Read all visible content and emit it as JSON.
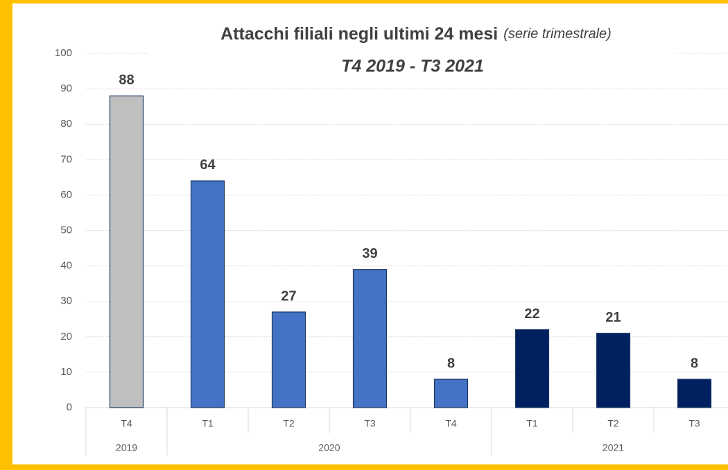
{
  "chart_data": {
    "type": "bar",
    "title": "Attacchi filiali negli ultimi 24 mesi",
    "title_note": "(serie trimestrale)",
    "subtitle": "T4 2019 - T3 2021",
    "groups": [
      {
        "name": "2019",
        "color": "#BFBFBF",
        "categories": [
          "T4"
        ],
        "values": [
          88
        ]
      },
      {
        "name": "2020",
        "color": "#4472C4",
        "categories": [
          "T1",
          "T2",
          "T3",
          "T4"
        ],
        "values": [
          64,
          27,
          39,
          8
        ]
      },
      {
        "name": "2021",
        "color": "#002060",
        "categories": [
          "T1",
          "T2",
          "T3"
        ],
        "values": [
          22,
          21,
          8
        ]
      }
    ],
    "ylim": [
      0,
      100
    ],
    "yticks": [
      0,
      10,
      20,
      30,
      40,
      50,
      60,
      70,
      80,
      90,
      100
    ],
    "grid": true
  }
}
